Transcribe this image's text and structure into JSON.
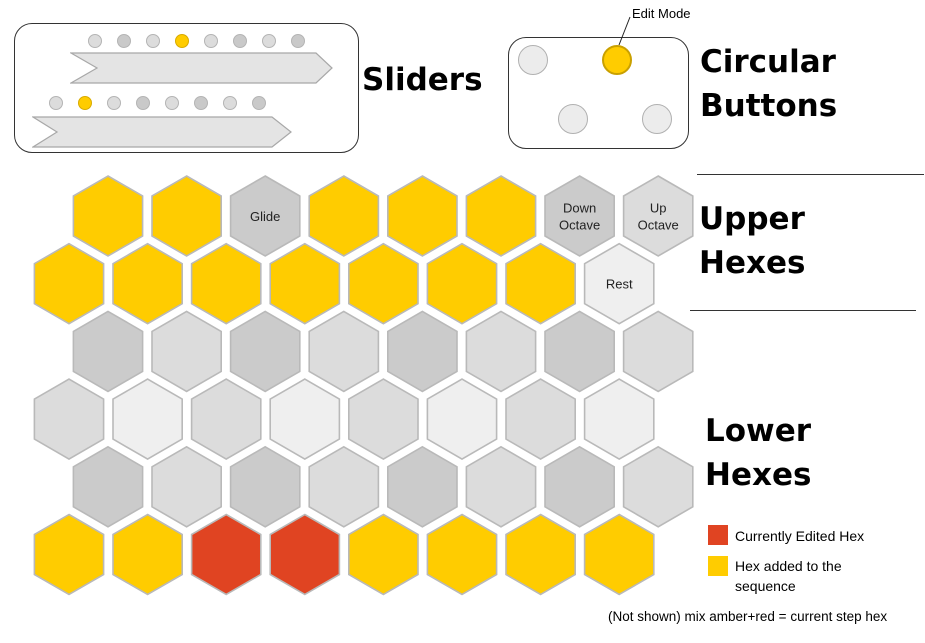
{
  "headings": {
    "sliders": "Sliders",
    "circular_buttons": [
      "Circular",
      "Buttons"
    ],
    "upper_hexes": [
      "Upper",
      "Hexes"
    ],
    "lower_hexes": [
      "Lower",
      "Hexes"
    ]
  },
  "sliders": [
    {
      "dots": [
        "c0",
        "c1",
        "c0",
        "on",
        "c0",
        "c1",
        "c0",
        "c1"
      ]
    },
    {
      "dots": [
        "c0",
        "on",
        "c0",
        "c1",
        "c0",
        "c1",
        "c0",
        "c1"
      ]
    }
  ],
  "circular_buttons": {
    "edit_mode_label": "Edit Mode",
    "buttons": [
      {
        "state": "off"
      },
      {
        "state": "on"
      },
      {
        "state": "off"
      },
      {
        "state": "off"
      }
    ]
  },
  "hex_rows": [
    [
      {
        "color": "amber",
        "label": ""
      },
      {
        "color": "amber",
        "label": ""
      },
      {
        "color": "gray",
        "label": "Glide"
      },
      {
        "color": "amber",
        "label": ""
      },
      {
        "color": "amber",
        "label": ""
      },
      {
        "color": "amber",
        "label": ""
      },
      {
        "color": "gray",
        "label": "Down\nOctave"
      },
      {
        "color": "light",
        "label": "Up\nOctave"
      }
    ],
    [
      {
        "color": "amber",
        "label": ""
      },
      {
        "color": "amber",
        "label": ""
      },
      {
        "color": "amber",
        "label": ""
      },
      {
        "color": "amber",
        "label": ""
      },
      {
        "color": "amber",
        "label": ""
      },
      {
        "color": "amber",
        "label": ""
      },
      {
        "color": "amber",
        "label": ""
      },
      {
        "color": "white",
        "label": "Rest"
      }
    ],
    [
      {
        "color": "gray",
        "label": ""
      },
      {
        "color": "light",
        "label": ""
      },
      {
        "color": "gray",
        "label": ""
      },
      {
        "color": "light",
        "label": ""
      },
      {
        "color": "gray",
        "label": ""
      },
      {
        "color": "light",
        "label": ""
      },
      {
        "color": "gray",
        "label": ""
      },
      {
        "color": "light",
        "label": ""
      }
    ],
    [
      {
        "color": "light",
        "label": ""
      },
      {
        "color": "white",
        "label": ""
      },
      {
        "color": "light",
        "label": ""
      },
      {
        "color": "white",
        "label": ""
      },
      {
        "color": "light",
        "label": ""
      },
      {
        "color": "white",
        "label": ""
      },
      {
        "color": "light",
        "label": ""
      },
      {
        "color": "white",
        "label": ""
      }
    ],
    [
      {
        "color": "gray",
        "label": ""
      },
      {
        "color": "light",
        "label": ""
      },
      {
        "color": "gray",
        "label": ""
      },
      {
        "color": "light",
        "label": ""
      },
      {
        "color": "gray",
        "label": ""
      },
      {
        "color": "light",
        "label": ""
      },
      {
        "color": "gray",
        "label": ""
      },
      {
        "color": "light",
        "label": ""
      }
    ],
    [
      {
        "color": "amber",
        "label": ""
      },
      {
        "color": "amber",
        "label": ""
      },
      {
        "color": "red",
        "label": ""
      },
      {
        "color": "red",
        "label": ""
      },
      {
        "color": "amber",
        "label": ""
      },
      {
        "color": "amber",
        "label": ""
      },
      {
        "color": "amber",
        "label": ""
      },
      {
        "color": "amber",
        "label": ""
      }
    ]
  ],
  "colors": {
    "amber": "#ffcc00",
    "red": "#e04422",
    "gray": "#cbcbcb",
    "light": "#dcdcdc",
    "white": "#efefef",
    "stroke": "#b9b9b9"
  },
  "legend": [
    {
      "color": "#e04422",
      "text": "Currently Edited Hex"
    },
    {
      "color": "#ffcc00",
      "text": "Hex added to the\nsequence"
    }
  ],
  "footnote": "(Not shown) mix amber+red = current step hex"
}
